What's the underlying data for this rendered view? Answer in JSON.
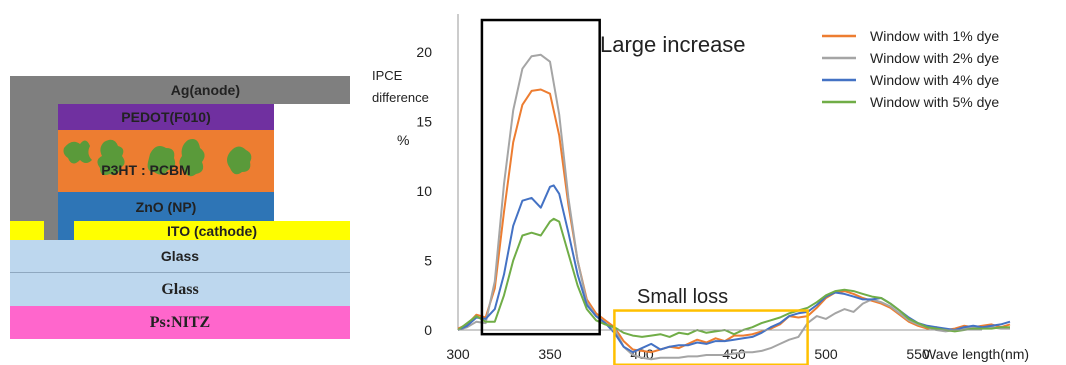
{
  "device_stack": {
    "layers": [
      {
        "id": "ag",
        "label": "Ag(anode)",
        "color": "#7f7f7f"
      },
      {
        "id": "pedot",
        "label": "PEDOT(F010)",
        "color": "#7030a0"
      },
      {
        "id": "active",
        "label": "P3HT : PCBM",
        "color": "#ed7d31",
        "blob_color": "#5a9a3a"
      },
      {
        "id": "zno",
        "label": "ZnO (NP)",
        "color": "#2e75b6"
      },
      {
        "id": "ito",
        "label": "ITO (cathode)",
        "color": "#ffff00"
      },
      {
        "id": "glass1",
        "label": "Glass",
        "color": "#bdd7ee"
      },
      {
        "id": "glass2",
        "label": "Glass",
        "color": "#bdd7ee"
      },
      {
        "id": "psnitz",
        "label": "Ps:NITZ",
        "color": "#ff66cc"
      }
    ]
  },
  "chart_data": {
    "type": "line",
    "ylabel": [
      "IPCE",
      "difference",
      "%"
    ],
    "xlabel": "Wave length(nm)",
    "xlim": [
      300,
      600
    ],
    "ylim": [
      0,
      22
    ],
    "xticks": [
      300,
      350,
      400,
      450,
      500,
      550
    ],
    "yticks": [
      0,
      5,
      10,
      15,
      20
    ],
    "legend_position": "top-right",
    "annotations": [
      {
        "text": "Large increase",
        "box_color": "#000000",
        "x_range": [
          313,
          377
        ],
        "y_range": [
          -0.3,
          22.3
        ]
      },
      {
        "text": "Small loss",
        "box_color": "#ffc000",
        "x_range": [
          385,
          490
        ],
        "y_range": [
          -2.5,
          1.4
        ]
      }
    ],
    "series": [
      {
        "name": "Window with 1% dye",
        "color": "#ed7d31",
        "points": [
          [
            300,
            0.1
          ],
          [
            305,
            0.4
          ],
          [
            310,
            1.1
          ],
          [
            315,
            0.9
          ],
          [
            320,
            3.0
          ],
          [
            325,
            8.5
          ],
          [
            330,
            13.5
          ],
          [
            335,
            16.2
          ],
          [
            340,
            17.2
          ],
          [
            345,
            17.3
          ],
          [
            350,
            17.0
          ],
          [
            355,
            14.0
          ],
          [
            360,
            9.0
          ],
          [
            365,
            5.0
          ],
          [
            370,
            2.2
          ],
          [
            375,
            1.2
          ],
          [
            380,
            0.7
          ],
          [
            385,
            0.2
          ],
          [
            390,
            -0.8
          ],
          [
            395,
            -1.4
          ],
          [
            400,
            -1.5
          ],
          [
            405,
            -1.6
          ],
          [
            410,
            -1.4
          ],
          [
            415,
            -1.2
          ],
          [
            420,
            -1.3
          ],
          [
            425,
            -1.0
          ],
          [
            430,
            -0.7
          ],
          [
            435,
            -0.9
          ],
          [
            440,
            -0.6
          ],
          [
            445,
            -0.8
          ],
          [
            450,
            -0.4
          ],
          [
            455,
            -0.4
          ],
          [
            460,
            -0.3
          ],
          [
            465,
            -0.1
          ],
          [
            470,
            0.1
          ],
          [
            475,
            0.4
          ],
          [
            480,
            1.0
          ],
          [
            485,
            0.9
          ],
          [
            490,
            1.0
          ],
          [
            495,
            1.6
          ],
          [
            500,
            2.3
          ],
          [
            505,
            2.7
          ],
          [
            510,
            2.8
          ],
          [
            515,
            2.6
          ],
          [
            520,
            2.3
          ],
          [
            525,
            2.1
          ],
          [
            530,
            1.9
          ],
          [
            535,
            1.6
          ],
          [
            540,
            1.1
          ],
          [
            545,
            0.6
          ],
          [
            550,
            0.3
          ],
          [
            555,
            0.1
          ],
          [
            560,
            0.2
          ],
          [
            565,
            0.0
          ],
          [
            570,
            0.1
          ],
          [
            575,
            0.3
          ],
          [
            580,
            0.2
          ],
          [
            585,
            0.3
          ],
          [
            590,
            0.4
          ],
          [
            595,
            0.2
          ],
          [
            600,
            0.4
          ]
        ]
      },
      {
        "name": "Window with 2% dye",
        "color": "#a5a5a5",
        "points": [
          [
            300,
            0.0
          ],
          [
            305,
            0.2
          ],
          [
            310,
            0.6
          ],
          [
            315,
            0.5
          ],
          [
            320,
            3.5
          ],
          [
            325,
            10.5
          ],
          [
            330,
            15.8
          ],
          [
            335,
            18.8
          ],
          [
            340,
            19.7
          ],
          [
            345,
            19.8
          ],
          [
            350,
            19.3
          ],
          [
            355,
            15.5
          ],
          [
            360,
            9.5
          ],
          [
            365,
            5.0
          ],
          [
            370,
            2.0
          ],
          [
            375,
            1.0
          ],
          [
            380,
            0.5
          ],
          [
            385,
            0.1
          ],
          [
            390,
            -1.2
          ],
          [
            395,
            -1.8
          ],
          [
            400,
            -2.0
          ],
          [
            405,
            -2.1
          ],
          [
            410,
            -2.0
          ],
          [
            415,
            -2.0
          ],
          [
            420,
            -2.0
          ],
          [
            425,
            -1.9
          ],
          [
            430,
            -1.9
          ],
          [
            435,
            -1.8
          ],
          [
            440,
            -1.8
          ],
          [
            445,
            -1.8
          ],
          [
            450,
            -1.7
          ],
          [
            455,
            -1.6
          ],
          [
            460,
            -1.6
          ],
          [
            465,
            -1.5
          ],
          [
            470,
            -1.3
          ],
          [
            475,
            -1.0
          ],
          [
            480,
            -0.7
          ],
          [
            485,
            -0.5
          ],
          [
            490,
            0.5
          ],
          [
            495,
            1.0
          ],
          [
            500,
            0.8
          ],
          [
            505,
            1.2
          ],
          [
            510,
            1.5
          ],
          [
            515,
            1.3
          ],
          [
            520,
            1.9
          ],
          [
            525,
            2.2
          ],
          [
            530,
            2.0
          ],
          [
            535,
            1.7
          ],
          [
            540,
            1.2
          ],
          [
            545,
            0.7
          ],
          [
            550,
            0.4
          ],
          [
            555,
            0.2
          ],
          [
            560,
            0.0
          ],
          [
            565,
            -0.1
          ],
          [
            570,
            0.0
          ],
          [
            575,
            0.1
          ],
          [
            580,
            0.2
          ],
          [
            585,
            0.1
          ],
          [
            590,
            0.2
          ],
          [
            595,
            0.1
          ],
          [
            600,
            0.1
          ]
        ]
      },
      {
        "name": "Window with 4% dye",
        "color": "#4472c4",
        "points": [
          [
            300,
            0.0
          ],
          [
            305,
            0.3
          ],
          [
            310,
            0.9
          ],
          [
            315,
            0.8
          ],
          [
            320,
            1.5
          ],
          [
            325,
            4.0
          ],
          [
            330,
            7.5
          ],
          [
            335,
            9.3
          ],
          [
            340,
            9.5
          ],
          [
            345,
            8.8
          ],
          [
            350,
            10.3
          ],
          [
            352,
            10.4
          ],
          [
            355,
            9.8
          ],
          [
            360,
            7.0
          ],
          [
            365,
            4.0
          ],
          [
            370,
            1.8
          ],
          [
            375,
            1.0
          ],
          [
            380,
            0.5
          ],
          [
            385,
            -0.2
          ],
          [
            390,
            -1.2
          ],
          [
            395,
            -1.6
          ],
          [
            400,
            -1.3
          ],
          [
            405,
            -1.0
          ],
          [
            410,
            -1.4
          ],
          [
            415,
            -1.2
          ],
          [
            420,
            -1.1
          ],
          [
            425,
            -1.1
          ],
          [
            430,
            -0.9
          ],
          [
            435,
            -1.0
          ],
          [
            440,
            -0.8
          ],
          [
            445,
            -0.8
          ],
          [
            450,
            -0.7
          ],
          [
            455,
            -0.6
          ],
          [
            460,
            -0.5
          ],
          [
            465,
            -0.2
          ],
          [
            470,
            0.2
          ],
          [
            475,
            0.5
          ],
          [
            480,
            1.0
          ],
          [
            485,
            1.2
          ],
          [
            490,
            1.3
          ],
          [
            495,
            1.8
          ],
          [
            500,
            2.4
          ],
          [
            505,
            2.7
          ],
          [
            510,
            2.6
          ],
          [
            515,
            2.4
          ],
          [
            520,
            2.2
          ],
          [
            525,
            2.2
          ],
          [
            530,
            2.3
          ],
          [
            535,
            1.9
          ],
          [
            540,
            1.4
          ],
          [
            545,
            0.9
          ],
          [
            550,
            0.5
          ],
          [
            555,
            0.3
          ],
          [
            560,
            0.2
          ],
          [
            565,
            0.1
          ],
          [
            570,
            0.0
          ],
          [
            575,
            0.2
          ],
          [
            580,
            0.3
          ],
          [
            585,
            0.2
          ],
          [
            590,
            0.3
          ],
          [
            595,
            0.4
          ],
          [
            600,
            0.6
          ]
        ]
      },
      {
        "name": "Window with 5% dye",
        "color": "#70ad47",
        "points": [
          [
            300,
            0.0
          ],
          [
            305,
            0.5
          ],
          [
            310,
            1.0
          ],
          [
            315,
            0.6
          ],
          [
            320,
            0.6
          ],
          [
            325,
            2.5
          ],
          [
            330,
            5.0
          ],
          [
            335,
            6.8
          ],
          [
            340,
            7.0
          ],
          [
            345,
            6.8
          ],
          [
            350,
            7.8
          ],
          [
            352,
            8.0
          ],
          [
            355,
            7.8
          ],
          [
            360,
            5.5
          ],
          [
            365,
            3.2
          ],
          [
            370,
            1.5
          ],
          [
            375,
            0.7
          ],
          [
            380,
            0.4
          ],
          [
            385,
            0.2
          ],
          [
            390,
            -0.2
          ],
          [
            395,
            -0.4
          ],
          [
            400,
            -0.5
          ],
          [
            405,
            -0.4
          ],
          [
            410,
            -0.3
          ],
          [
            415,
            -0.5
          ],
          [
            420,
            -0.2
          ],
          [
            425,
            -0.3
          ],
          [
            430,
            0.0
          ],
          [
            435,
            -0.2
          ],
          [
            440,
            -0.1
          ],
          [
            445,
            0.0
          ],
          [
            450,
            -0.3
          ],
          [
            455,
            0.0
          ],
          [
            460,
            0.2
          ],
          [
            465,
            0.5
          ],
          [
            470,
            0.7
          ],
          [
            475,
            0.9
          ],
          [
            480,
            1.2
          ],
          [
            485,
            1.4
          ],
          [
            490,
            1.6
          ],
          [
            495,
            2.0
          ],
          [
            500,
            2.5
          ],
          [
            505,
            2.8
          ],
          [
            510,
            2.9
          ],
          [
            515,
            2.8
          ],
          [
            520,
            2.6
          ],
          [
            525,
            2.4
          ],
          [
            530,
            2.3
          ],
          [
            535,
            1.9
          ],
          [
            540,
            1.4
          ],
          [
            545,
            0.8
          ],
          [
            550,
            0.5
          ],
          [
            555,
            0.2
          ],
          [
            560,
            0.1
          ],
          [
            565,
            0.0
          ],
          [
            570,
            -0.1
          ],
          [
            575,
            0.0
          ],
          [
            580,
            0.1
          ],
          [
            585,
            0.1
          ],
          [
            590,
            0.1
          ],
          [
            595,
            0.2
          ],
          [
            600,
            0.2
          ]
        ]
      }
    ]
  }
}
